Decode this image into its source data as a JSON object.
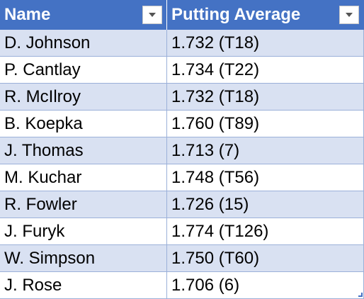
{
  "table": {
    "headers": {
      "name": "Name",
      "putting_average": "Putting Average"
    },
    "header_color": "#4472C4",
    "band_color": "#D9E1F2",
    "filter_icon": "dropdown-arrow-icon",
    "rows": [
      {
        "name": "D. Johnson",
        "putting_average": "1.732 (T18)"
      },
      {
        "name": "P. Cantlay",
        "putting_average": "1.734 (T22)"
      },
      {
        "name": "R. McIlroy",
        "putting_average": "1.732 (T18)"
      },
      {
        "name": "B. Koepka",
        "putting_average": "1.760 (T89)"
      },
      {
        "name": "J. Thomas",
        "putting_average": "1.713 (7)"
      },
      {
        "name": "M. Kuchar",
        "putting_average": "1.748 (T56)"
      },
      {
        "name": "R. Fowler",
        "putting_average": "1.726 (15)"
      },
      {
        "name": "J. Furyk",
        "putting_average": "1.774 (T126)"
      },
      {
        "name": "W. Simpson",
        "putting_average": "1.750 (T60)"
      },
      {
        "name": "J. Rose",
        "putting_average": "1.706 (6)"
      }
    ]
  }
}
